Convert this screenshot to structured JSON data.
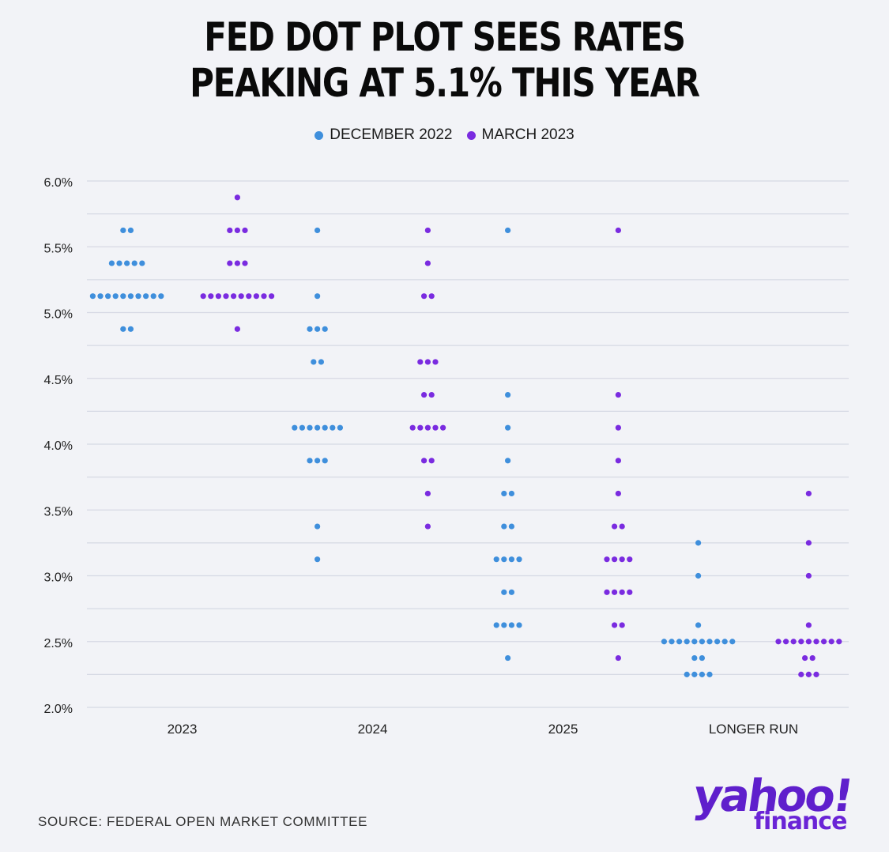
{
  "title": {
    "line1": "FED DOT PLOT SEES RATES",
    "line2": "PEAKING AT 5.1% THIS YEAR"
  },
  "legend": [
    {
      "label": "DECEMBER 2022",
      "color": "#3f8fdc"
    },
    {
      "label": "MARCH 2023",
      "color": "#7a2be0"
    }
  ],
  "chart_data": {
    "type": "scatter",
    "subtype": "dot-plot",
    "title": "FED DOT PLOT SEES RATES PEAKING AT 5.1% THIS YEAR",
    "xlabel": "",
    "ylabel": "",
    "ylim": [
      2.0,
      6.0
    ],
    "y_ticks": [
      "6.0%",
      "5.5%",
      "5.0%",
      "4.5%",
      "4.0%",
      "3.5%",
      "3.0%",
      "2.5%",
      "2.0%"
    ],
    "y_tick_values": [
      6.0,
      5.5,
      5.0,
      4.5,
      4.0,
      3.5,
      3.0,
      2.5,
      2.0
    ],
    "gridlines_at": [
      6.0,
      5.75,
      5.5,
      5.25,
      5.0,
      4.75,
      4.5,
      4.25,
      4.0,
      3.75,
      3.5,
      3.25,
      3.0,
      2.75,
      2.5,
      2.25,
      2.0
    ],
    "categories": [
      "2023",
      "2024",
      "2025",
      "LONGER RUN"
    ],
    "series": [
      {
        "name": "DECEMBER 2022",
        "color": "#3f8fdc",
        "groups": [
          [
            {
              "rate": 5.625,
              "count": 2
            },
            {
              "rate": 5.375,
              "count": 5
            },
            {
              "rate": 5.125,
              "count": 10
            },
            {
              "rate": 4.875,
              "count": 2
            }
          ],
          [
            {
              "rate": 5.625,
              "count": 1
            },
            {
              "rate": 5.125,
              "count": 1
            },
            {
              "rate": 4.875,
              "count": 3
            },
            {
              "rate": 4.625,
              "count": 2
            },
            {
              "rate": 4.125,
              "count": 7
            },
            {
              "rate": 3.875,
              "count": 3
            },
            {
              "rate": 3.375,
              "count": 1
            },
            {
              "rate": 3.125,
              "count": 1
            }
          ],
          [
            {
              "rate": 5.625,
              "count": 1
            },
            {
              "rate": 4.375,
              "count": 1
            },
            {
              "rate": 4.125,
              "count": 1
            },
            {
              "rate": 3.875,
              "count": 1
            },
            {
              "rate": 3.625,
              "count": 2
            },
            {
              "rate": 3.375,
              "count": 2
            },
            {
              "rate": 3.125,
              "count": 4
            },
            {
              "rate": 2.875,
              "count": 2
            },
            {
              "rate": 2.625,
              "count": 4
            },
            {
              "rate": 2.375,
              "count": 1
            }
          ],
          [
            {
              "rate": 3.25,
              "count": 1
            },
            {
              "rate": 3.0,
              "count": 1
            },
            {
              "rate": 2.625,
              "count": 1
            },
            {
              "rate": 2.5,
              "count": 10
            },
            {
              "rate": 2.375,
              "count": 2
            },
            {
              "rate": 2.25,
              "count": 4
            }
          ]
        ]
      },
      {
        "name": "MARCH 2023",
        "color": "#7a2be0",
        "groups": [
          [
            {
              "rate": 5.875,
              "count": 1
            },
            {
              "rate": 5.625,
              "count": 3
            },
            {
              "rate": 5.375,
              "count": 3
            },
            {
              "rate": 5.125,
              "count": 10
            },
            {
              "rate": 4.875,
              "count": 1
            }
          ],
          [
            {
              "rate": 5.625,
              "count": 1
            },
            {
              "rate": 5.375,
              "count": 1
            },
            {
              "rate": 5.125,
              "count": 2
            },
            {
              "rate": 4.625,
              "count": 3
            },
            {
              "rate": 4.375,
              "count": 2
            },
            {
              "rate": 4.125,
              "count": 5
            },
            {
              "rate": 3.875,
              "count": 2
            },
            {
              "rate": 3.625,
              "count": 1
            },
            {
              "rate": 3.375,
              "count": 1
            }
          ],
          [
            {
              "rate": 5.625,
              "count": 1
            },
            {
              "rate": 4.375,
              "count": 1
            },
            {
              "rate": 4.125,
              "count": 1
            },
            {
              "rate": 3.875,
              "count": 1
            },
            {
              "rate": 3.625,
              "count": 1
            },
            {
              "rate": 3.375,
              "count": 2
            },
            {
              "rate": 3.125,
              "count": 4
            },
            {
              "rate": 2.875,
              "count": 4
            },
            {
              "rate": 2.625,
              "count": 2
            },
            {
              "rate": 2.375,
              "count": 1
            }
          ],
          [
            {
              "rate": 3.625,
              "count": 1
            },
            {
              "rate": 3.25,
              "count": 1
            },
            {
              "rate": 3.0,
              "count": 1
            },
            {
              "rate": 2.625,
              "count": 1
            },
            {
              "rate": 2.5,
              "count": 9
            },
            {
              "rate": 2.375,
              "count": 2
            },
            {
              "rate": 2.25,
              "count": 3
            }
          ]
        ]
      }
    ]
  },
  "source": "SOURCE:  FEDERAL OPEN MARKET COMMITTEE",
  "logo": {
    "main": "yahoo!",
    "sub": "finance"
  }
}
